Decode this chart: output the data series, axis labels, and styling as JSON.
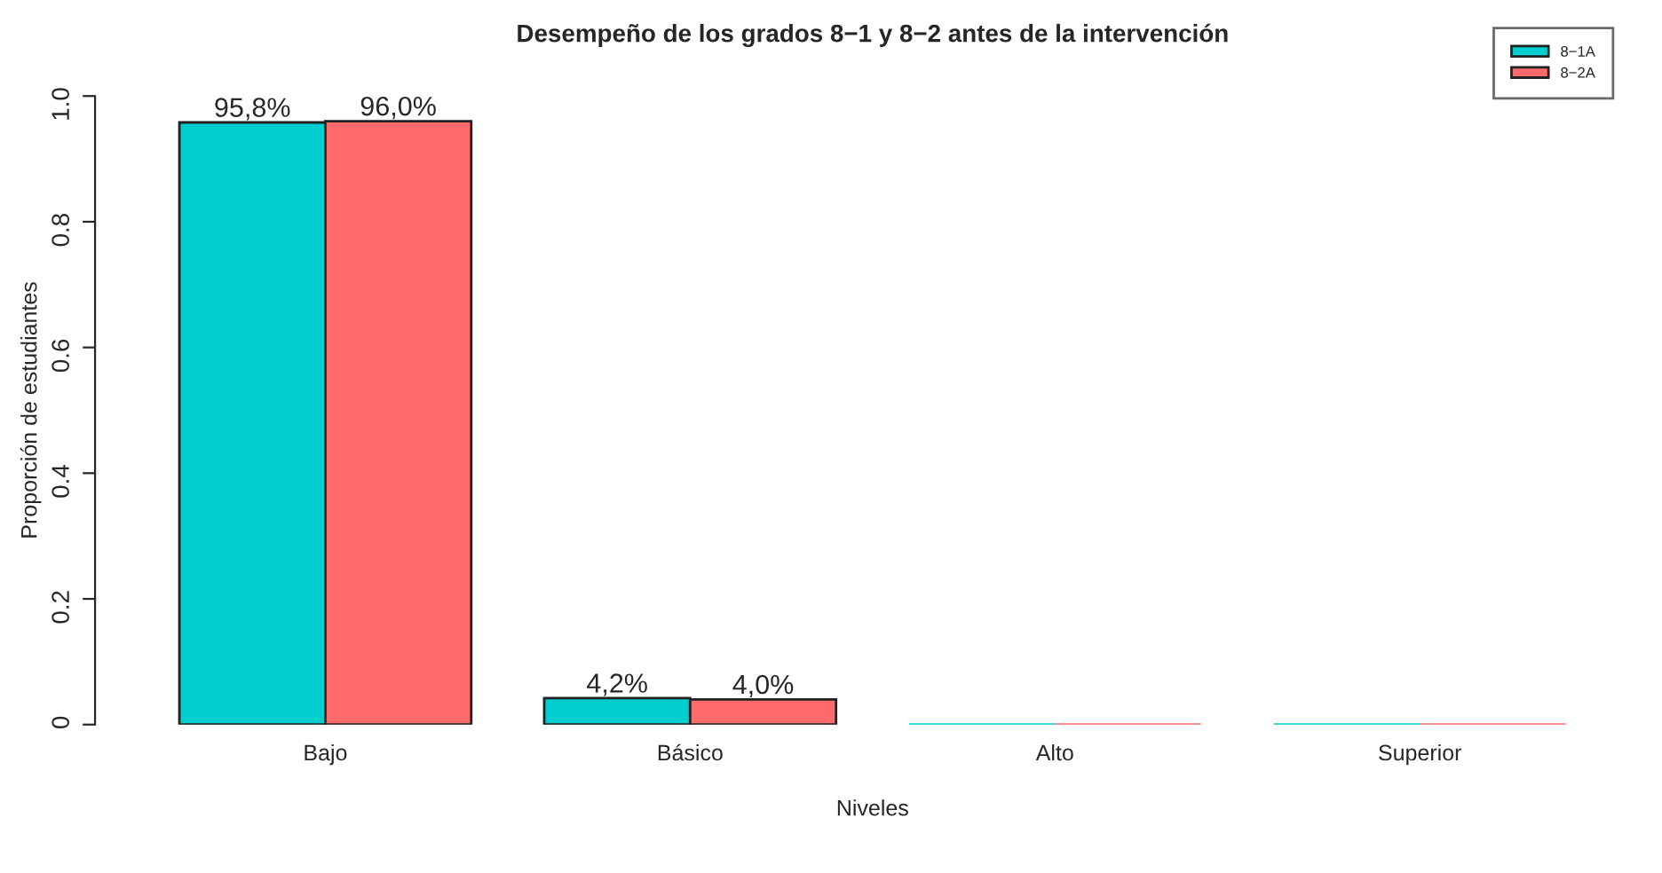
{
  "chart_data": {
    "type": "bar",
    "title": "Desempeño de los grados 8−1 y 8−2 antes de la intervención",
    "xlabel": "Niveles",
    "ylabel": "Proporción de estudiantes",
    "categories": [
      "Bajo",
      "Básico",
      "Alto",
      "Superior"
    ],
    "series": [
      {
        "name": "8−1A",
        "color": "#00cdcd",
        "values": [
          0.958,
          0.042,
          0,
          0
        ],
        "value_labels": [
          "95,8%",
          "4,2%",
          null,
          null
        ]
      },
      {
        "name": "8−2A",
        "color": "#ff6a6a",
        "values": [
          0.96,
          0.04,
          0,
          0
        ],
        "value_labels": [
          "96,0%",
          "4,0%",
          null,
          null
        ]
      }
    ],
    "ylim": [
      0,
      1.0
    ],
    "yticks": [
      0,
      {
        "value": 0.2,
        "label": "0.2"
      },
      {
        "value": 0.4,
        "label": "0.4"
      },
      {
        "value": 0.6,
        "label": "0.6"
      },
      {
        "value": 0.8,
        "label": "0.8"
      },
      {
        "value": 1.0,
        "label": "1.0"
      }
    ],
    "grid": false,
    "legend": "top right"
  }
}
